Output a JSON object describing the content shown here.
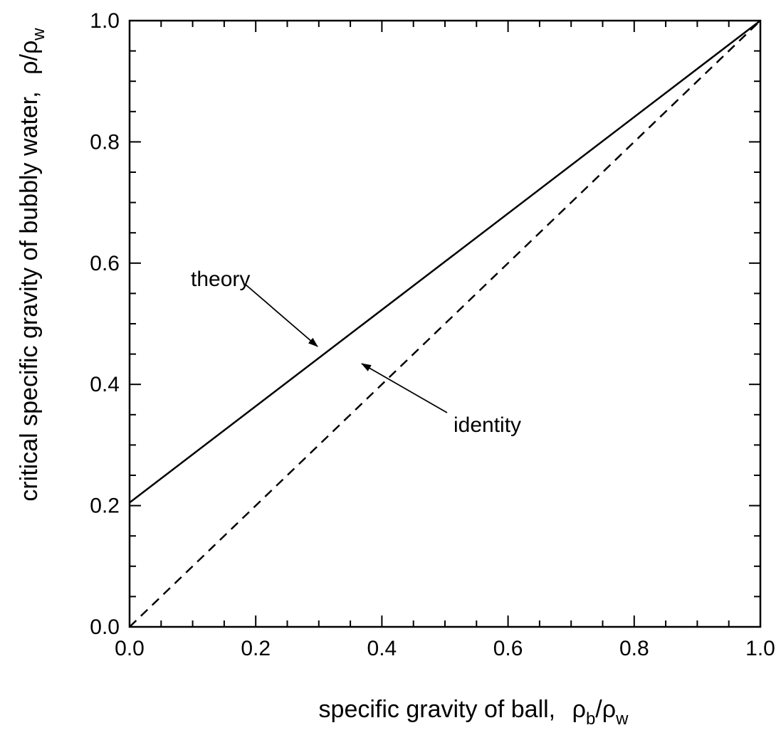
{
  "chart_data": {
    "type": "line",
    "title": "",
    "xlabel": "specific gravity of ball,",
    "xlabel_symbol": {
      "base": "ρ",
      "sub": "b",
      "slash": "/",
      "base2": "ρ",
      "sub2": "w"
    },
    "ylabel": "critical specific gravity of bubbly water,",
    "ylabel_symbol": {
      "base": "ρ",
      "slash": "/",
      "base2": "ρ",
      "sub2": "w"
    },
    "xlim": [
      0.0,
      1.0
    ],
    "ylim": [
      0.0,
      1.0
    ],
    "xticks": [
      "0.0",
      "0.2",
      "0.4",
      "0.6",
      "0.8",
      "1.0"
    ],
    "yticks": [
      "0.0",
      "0.2",
      "0.4",
      "0.6",
      "0.8",
      "1.0"
    ],
    "grid": false,
    "series": [
      {
        "name": "theory",
        "style": "solid",
        "x": [
          0.0,
          1.0
        ],
        "y": [
          0.205,
          1.0
        ]
      },
      {
        "name": "identity",
        "style": "dashed",
        "x": [
          0.0,
          1.0
        ],
        "y": [
          0.0,
          1.0
        ]
      }
    ],
    "annotations": [
      {
        "text": "theory",
        "points_to": {
          "x": 0.3,
          "y": 0.44
        }
      },
      {
        "text": "identity",
        "points_to": {
          "x": 0.37,
          "y": 0.36
        }
      }
    ]
  }
}
